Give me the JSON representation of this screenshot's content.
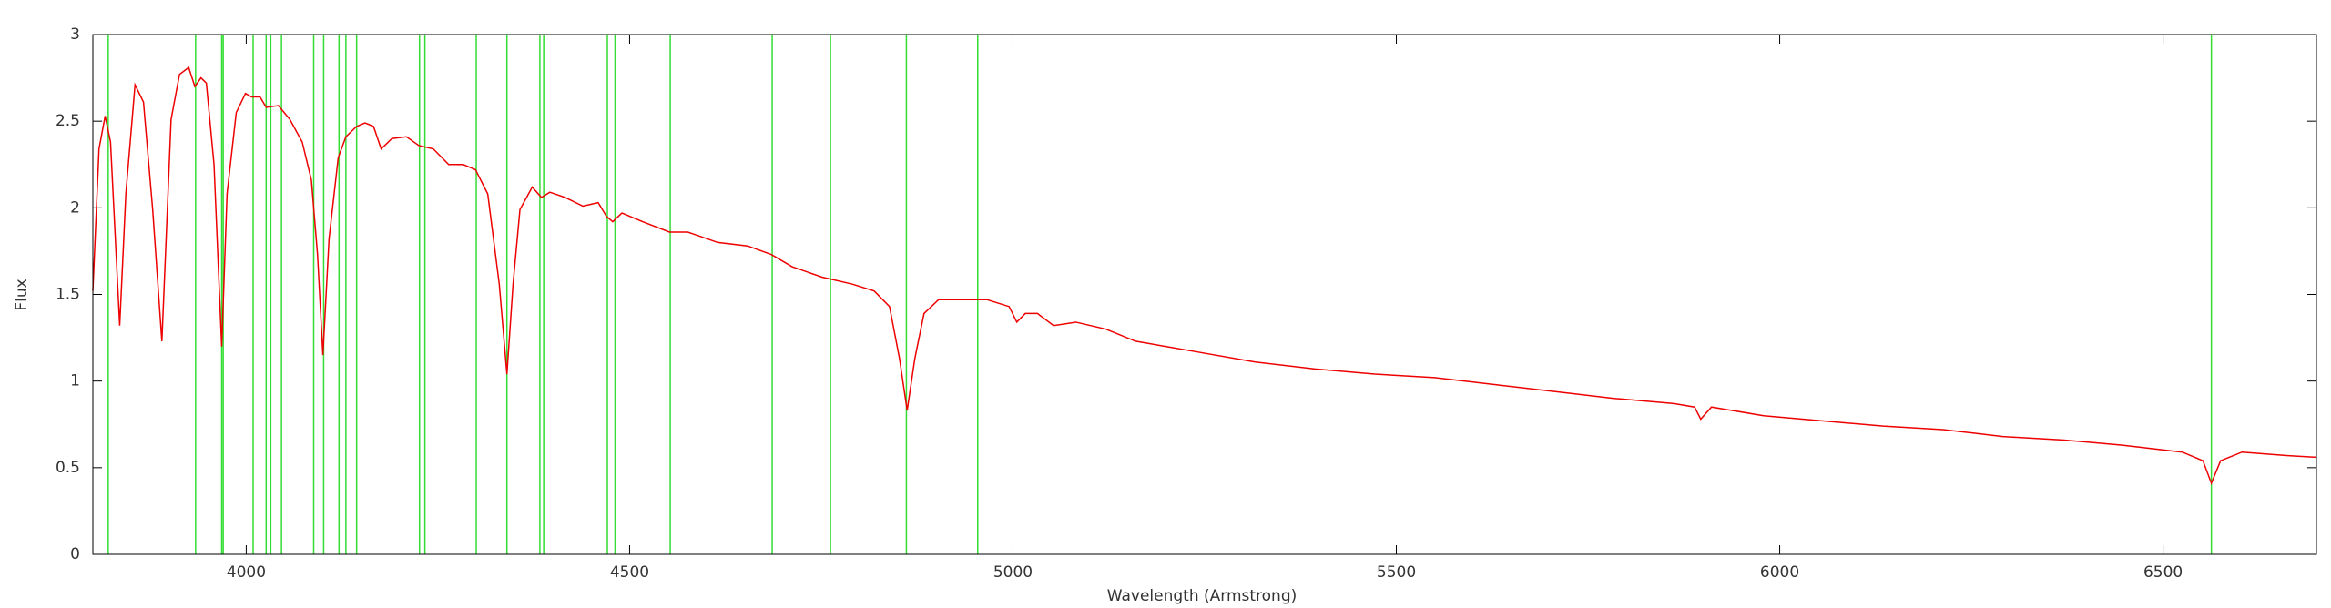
{
  "chart_data": {
    "type": "line",
    "xlabel": "Wavelength (Armstrong)",
    "ylabel": "Flux",
    "xlim": [
      3800,
      6700
    ],
    "xticks": [
      4000,
      4500,
      5000,
      5500,
      6000,
      6500
    ],
    "ylim": [
      0,
      3
    ],
    "yticks": [
      0,
      0.5,
      1,
      1.5,
      2,
      2.5,
      3
    ],
    "lines": {
      "color": "#33dd33",
      "x": [
        3820,
        3934,
        3968,
        3970,
        4009,
        4026,
        4032,
        4046,
        4088,
        4101,
        4121,
        4130,
        4144,
        4226,
        4233,
        4300,
        4340,
        4383,
        4388,
        4471,
        4481,
        4553,
        4686,
        4762,
        4861,
        4954,
        6563
      ]
    },
    "series": [
      {
        "color": "#ee0000",
        "x": [
          3800,
          3808,
          3816,
          3823,
          3835,
          3843,
          3855,
          3866,
          3878,
          3890,
          3902,
          3913,
          3925,
          3933,
          3941,
          3948,
          3958,
          3968,
          3975,
          3987,
          3999,
          4007,
          4018,
          4026,
          4042,
          4057,
          4073,
          4085,
          4093,
          4100,
          4108,
          4120,
          4130,
          4144,
          4155,
          4166,
          4176,
          4190,
          4209,
          4225,
          4244,
          4264,
          4283,
          4299,
          4315,
          4330,
          4340,
          4348,
          4357,
          4373,
          4385,
          4396,
          4416,
          4439,
          4459,
          4470,
          4478,
          4490,
          4517,
          4552,
          4576,
          4615,
          4654,
          4685,
          4712,
          4751,
          4790,
          4819,
          4839,
          4852,
          4862,
          4872,
          4884,
          4903,
          4936,
          4966,
          4995,
          5005,
          5016,
          5032,
          5053,
          5082,
          5121,
          5160,
          5199,
          5238,
          5316,
          5394,
          5472,
          5550,
          5628,
          5706,
          5784,
          5862,
          5889,
          5897,
          5911,
          5979,
          6057,
          6135,
          6213,
          6252,
          6291,
          6369,
          6447,
          6525,
          6552,
          6563,
          6575,
          6603,
          6661,
          6700
        ],
        "values": [
          1.52,
          2.34,
          2.53,
          2.38,
          1.32,
          2.08,
          2.71,
          2.61,
          1.99,
          1.23,
          2.51,
          2.77,
          2.81,
          2.7,
          2.75,
          2.72,
          2.25,
          1.2,
          2.08,
          2.55,
          2.66,
          2.64,
          2.64,
          2.58,
          2.59,
          2.51,
          2.38,
          2.16,
          1.73,
          1.15,
          1.82,
          2.29,
          2.41,
          2.47,
          2.49,
          2.47,
          2.34,
          2.4,
          2.41,
          2.36,
          2.34,
          2.25,
          2.25,
          2.22,
          2.08,
          1.56,
          1.04,
          1.56,
          1.99,
          2.12,
          2.06,
          2.09,
          2.06,
          2.01,
          2.03,
          1.95,
          1.92,
          1.97,
          1.92,
          1.86,
          1.86,
          1.8,
          1.78,
          1.73,
          1.66,
          1.6,
          1.56,
          1.52,
          1.43,
          1.13,
          0.83,
          1.13,
          1.39,
          1.47,
          1.47,
          1.47,
          1.43,
          1.34,
          1.39,
          1.39,
          1.32,
          1.34,
          1.3,
          1.23,
          1.2,
          1.17,
          1.11,
          1.07,
          1.04,
          1.02,
          0.98,
          0.94,
          0.9,
          0.87,
          0.85,
          0.78,
          0.85,
          0.8,
          0.77,
          0.74,
          0.72,
          0.7,
          0.68,
          0.66,
          0.63,
          0.59,
          0.54,
          0.41,
          0.54,
          0.59,
          0.57,
          0.56
        ]
      }
    ]
  }
}
